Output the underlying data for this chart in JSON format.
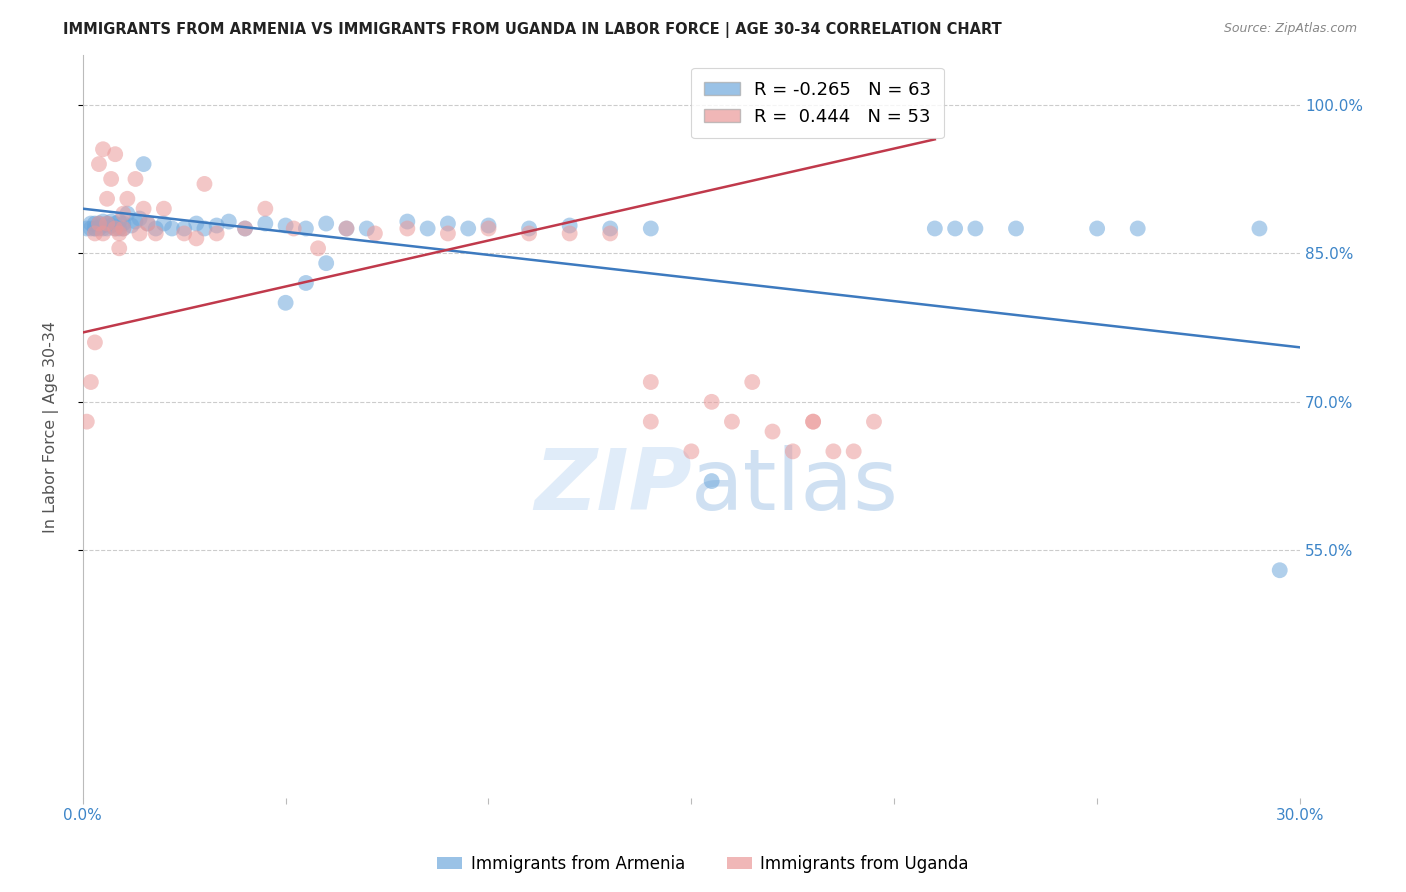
{
  "title": "IMMIGRANTS FROM ARMENIA VS IMMIGRANTS FROM UGANDA IN LABOR FORCE | AGE 30-34 CORRELATION CHART",
  "source_text": "Source: ZipAtlas.com",
  "ylabel": "In Labor Force | Age 30-34",
  "xlim": [
    0.0,
    0.3
  ],
  "ylim": [
    0.3,
    1.05
  ],
  "xticks": [
    0.0,
    0.05,
    0.1,
    0.15,
    0.2,
    0.25,
    0.3
  ],
  "xticklabels": [
    "0.0%",
    "",
    "",
    "",
    "",
    "",
    "30.0%"
  ],
  "yticks": [
    0.55,
    0.7,
    0.85,
    1.0
  ],
  "yticklabels": [
    "55.0%",
    "70.0%",
    "85.0%",
    "100.0%"
  ],
  "armenia_color": "#6fa8dc",
  "uganda_color": "#ea9999",
  "armenia_R": -0.265,
  "armenia_N": 63,
  "uganda_R": 0.444,
  "uganda_N": 53,
  "watermark": "ZIPatlas",
  "armenia_x": [
    0.001,
    0.002,
    0.002,
    0.003,
    0.003,
    0.003,
    0.004,
    0.004,
    0.005,
    0.005,
    0.005,
    0.006,
    0.006,
    0.007,
    0.007,
    0.008,
    0.008,
    0.009,
    0.009,
    0.01,
    0.01,
    0.011,
    0.012,
    0.013,
    0.014,
    0.015,
    0.016,
    0.018,
    0.02,
    0.022,
    0.025,
    0.028,
    0.03,
    0.033,
    0.036,
    0.04,
    0.045,
    0.05,
    0.055,
    0.06,
    0.065,
    0.07,
    0.08,
    0.085,
    0.09,
    0.095,
    0.1,
    0.11,
    0.12,
    0.13,
    0.05,
    0.055,
    0.06,
    0.14,
    0.155,
    0.21,
    0.215,
    0.22,
    0.23,
    0.25,
    0.26,
    0.29,
    0.295
  ],
  "armenia_y": [
    0.875,
    0.875,
    0.88,
    0.875,
    0.88,
    0.875,
    0.88,
    0.875,
    0.882,
    0.878,
    0.875,
    0.88,
    0.875,
    0.882,
    0.878,
    0.88,
    0.875,
    0.882,
    0.875,
    0.88,
    0.875,
    0.89,
    0.878,
    0.882,
    0.885,
    0.94,
    0.88,
    0.875,
    0.88,
    0.875,
    0.875,
    0.88,
    0.875,
    0.878,
    0.882,
    0.875,
    0.88,
    0.878,
    0.875,
    0.88,
    0.875,
    0.875,
    0.882,
    0.875,
    0.88,
    0.875,
    0.878,
    0.875,
    0.878,
    0.875,
    0.8,
    0.82,
    0.84,
    0.875,
    0.62,
    0.875,
    0.875,
    0.875,
    0.875,
    0.875,
    0.875,
    0.875,
    0.53
  ],
  "uganda_x": [
    0.001,
    0.002,
    0.003,
    0.003,
    0.004,
    0.004,
    0.005,
    0.005,
    0.006,
    0.006,
    0.007,
    0.008,
    0.008,
    0.009,
    0.009,
    0.01,
    0.01,
    0.011,
    0.013,
    0.014,
    0.015,
    0.016,
    0.018,
    0.02,
    0.025,
    0.028,
    0.03,
    0.033,
    0.04,
    0.045,
    0.052,
    0.058,
    0.065,
    0.072,
    0.08,
    0.09,
    0.1,
    0.11,
    0.12,
    0.13,
    0.14,
    0.155,
    0.165,
    0.18,
    0.19,
    0.14,
    0.15,
    0.16,
    0.17,
    0.175,
    0.18,
    0.185,
    0.195
  ],
  "uganda_y": [
    0.68,
    0.72,
    0.76,
    0.87,
    0.88,
    0.94,
    0.87,
    0.955,
    0.88,
    0.905,
    0.925,
    0.95,
    0.875,
    0.855,
    0.87,
    0.89,
    0.875,
    0.905,
    0.925,
    0.87,
    0.895,
    0.88,
    0.87,
    0.895,
    0.87,
    0.865,
    0.92,
    0.87,
    0.875,
    0.895,
    0.875,
    0.855,
    0.875,
    0.87,
    0.875,
    0.87,
    0.875,
    0.87,
    0.87,
    0.87,
    0.72,
    0.7,
    0.72,
    0.68,
    0.65,
    0.68,
    0.65,
    0.68,
    0.67,
    0.65,
    0.68,
    0.65,
    0.68
  ]
}
